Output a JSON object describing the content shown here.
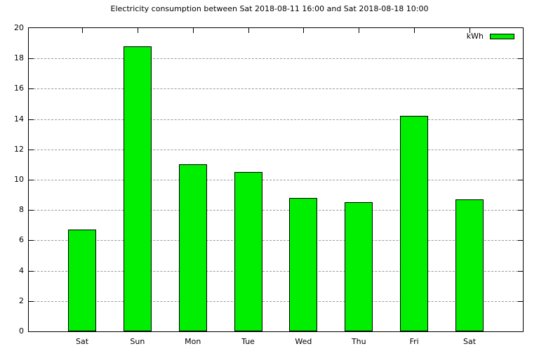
{
  "chart_data": {
    "type": "bar",
    "title": "Electricity consumption between Sat 2018-08-11 16:00 and Sat 2018-08-18 10:00",
    "categories": [
      "Sat",
      "Sun",
      "Mon",
      "Tue",
      "Wed",
      "Thu",
      "Fri",
      "Sat"
    ],
    "values": [
      6.7,
      18.8,
      11.0,
      10.5,
      8.8,
      8.5,
      14.2,
      8.7
    ],
    "series_name": "kWh",
    "xlabel": "",
    "ylabel": "",
    "ylim": [
      0,
      20
    ],
    "ytick_step": 2,
    "grid": "horizontal-dashed",
    "legend_position": "top-right-inside",
    "colors": {
      "bar_fill": "#00ee00",
      "bar_border": "#000000",
      "grid_line": "#9a9a9a",
      "axis": "#000000",
      "text": "#000000",
      "background": "#ffffff"
    }
  }
}
